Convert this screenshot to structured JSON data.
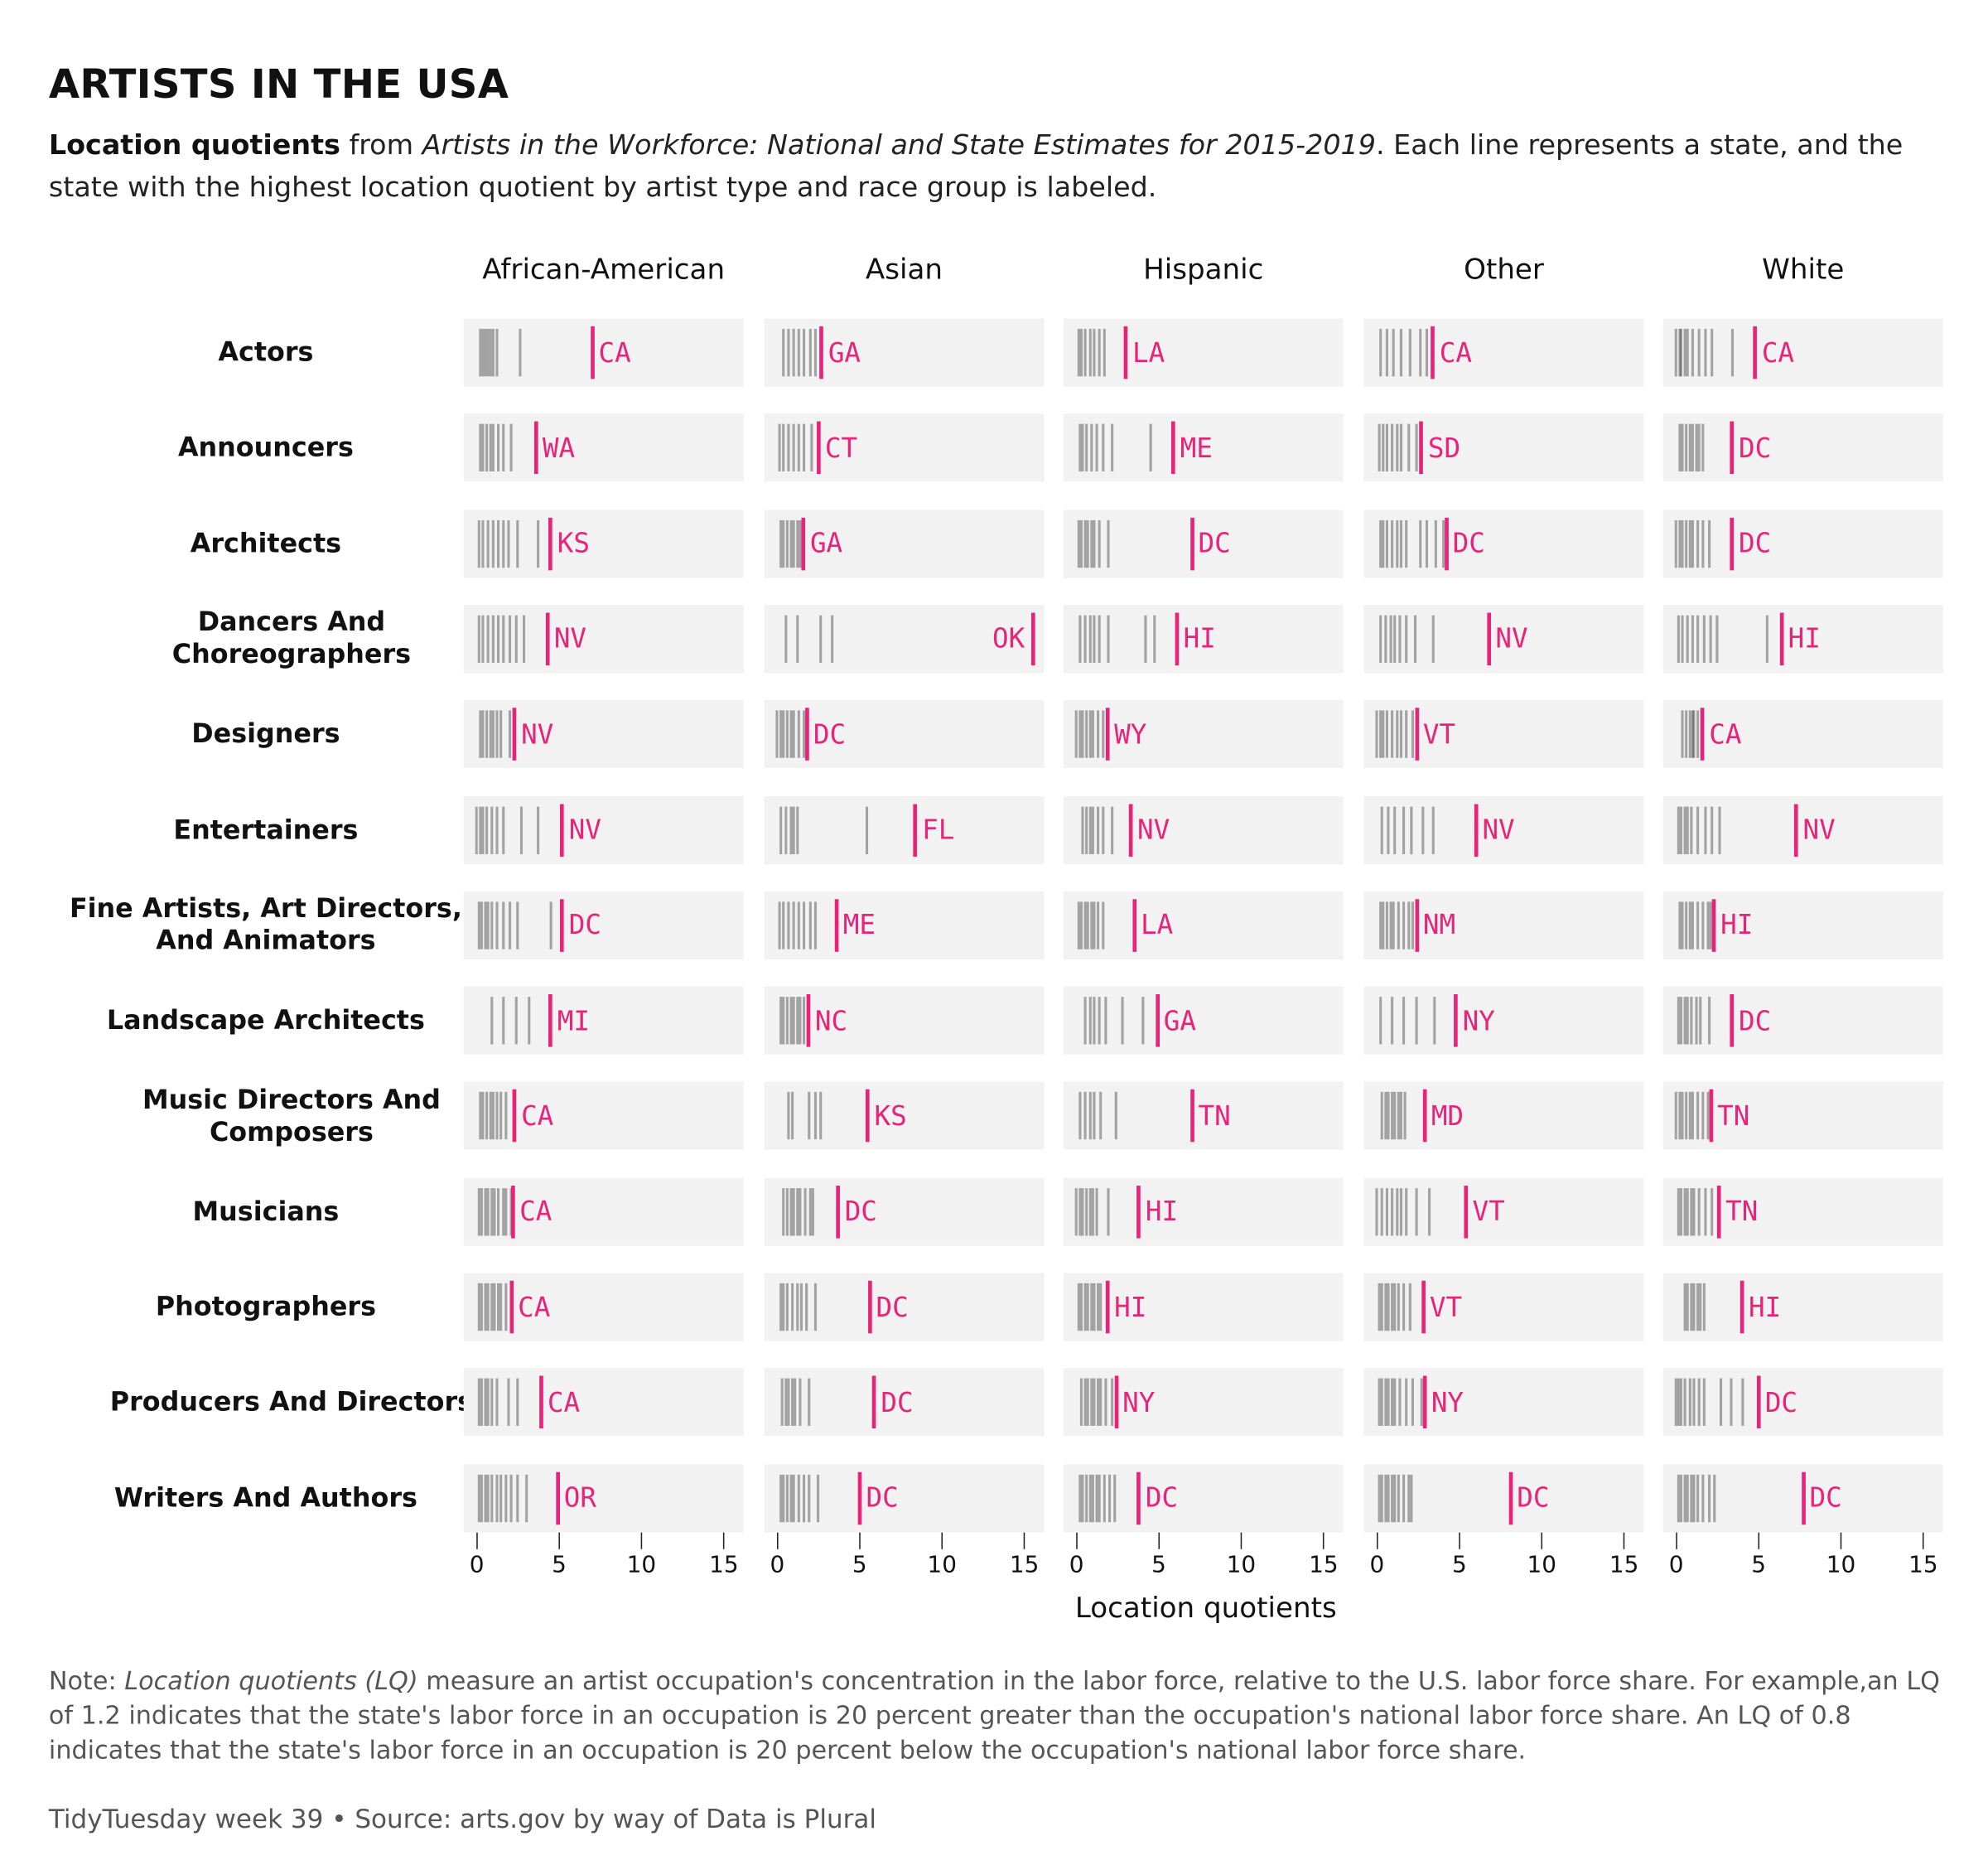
{
  "title": "ARTISTS IN THE USA",
  "subtitle": {
    "bold": "Location quotients",
    "from": " from ",
    "italic": "Artists in the Workforce: National and State Estimates for 2015-2019",
    "rest": ". Each line represents a state, and the state with the highest location quotient by artist type and race group is labeled."
  },
  "note": {
    "prefix": "Note: ",
    "italic": "Location quotients (LQ)",
    "rest": " measure an artist occupation's concentration in the labor force, relative to the U.S. labor force share. For example,an LQ of 1.2 indicates that the state's labor force in an occupation is 20 percent greater than the occupation's national labor force share. An LQ of 0.8 indicates that the state's labor force in an occupation is 20 percent below the occupation's national labor force share."
  },
  "caption": "TidyTuesday week 39 • Source: arts.gov by way of Data is Plural",
  "colors": {
    "highlight": "#e8237a",
    "state_line": "#000000",
    "panel_bg": "#f2f2f2"
  },
  "chart_data": {
    "type": "strip",
    "xlabel": "Location quotients",
    "xlim": [
      -0.8,
      16.2
    ],
    "xticks": [
      0,
      5,
      10,
      15
    ],
    "grid": false,
    "columns": [
      "African-American",
      "Asian",
      "Hispanic",
      "Other",
      "White"
    ],
    "rows": [
      "Actors",
      "Announcers",
      "Architects",
      "Dancers And Choreographers",
      "Designers",
      "Entertainers",
      "Fine Artists, Art Directors, And Animators",
      "Landscape Architects",
      "Music Directors And Composers",
      "Musicians",
      "Photographers",
      "Producers And Directors",
      "Writers And Authors"
    ],
    "cells": [
      [
        {
          "state": "CA",
          "max": 7.0,
          "others": [
            0.2,
            0.4,
            0.5,
            0.7,
            0.8,
            1.0,
            1.2,
            2.6
          ]
        },
        {
          "state": "GA",
          "max": 2.7,
          "others": [
            0.4,
            0.7,
            1.0,
            1.3,
            1.6,
            2.0,
            2.3
          ]
        },
        {
          "state": "LA",
          "max": 3.0,
          "others": [
            0.1,
            0.3,
            0.5,
            0.8,
            1.1,
            1.4,
            1.7
          ]
        },
        {
          "state": "CA",
          "max": 3.4,
          "others": [
            0.2,
            0.6,
            1.0,
            1.5,
            2.0,
            2.6,
            3.0
          ]
        },
        {
          "state": "CA",
          "max": 4.8,
          "others": [
            0.0,
            0.2,
            0.3,
            0.5,
            0.7,
            1.0,
            1.4,
            1.8,
            2.2,
            3.4
          ]
        }
      ],
      [
        {
          "state": "WA",
          "max": 3.6,
          "others": [
            0.2,
            0.4,
            0.6,
            0.8,
            1.0,
            1.3,
            1.6,
            2.1
          ]
        },
        {
          "state": "CT",
          "max": 2.5,
          "others": [
            0.1,
            0.4,
            0.7,
            1.0,
            1.3,
            1.6,
            2.1
          ]
        },
        {
          "state": "ME",
          "max": 5.9,
          "others": [
            0.2,
            0.4,
            0.6,
            0.9,
            1.2,
            1.6,
            2.2,
            4.5
          ]
        },
        {
          "state": "SD",
          "max": 2.7,
          "others": [
            0.1,
            0.4,
            0.6,
            0.9,
            1.2,
            1.5,
            1.9,
            2.4
          ]
        },
        {
          "state": "DC",
          "max": 3.4,
          "others": [
            0.2,
            0.4,
            0.6,
            0.8,
            1.0,
            1.2,
            1.4,
            1.6
          ]
        }
      ],
      [
        {
          "state": "KS",
          "max": 4.5,
          "others": [
            0.1,
            0.4,
            0.7,
            1.0,
            1.3,
            1.6,
            1.9,
            2.5,
            3.7
          ]
        },
        {
          "state": "GA",
          "max": 1.6,
          "others": [
            0.2,
            0.4,
            0.6,
            0.8,
            1.0,
            1.2,
            1.4
          ]
        },
        {
          "state": "DC",
          "max": 7.0,
          "others": [
            0.1,
            0.3,
            0.5,
            0.7,
            0.9,
            1.1,
            1.4,
            1.9
          ]
        },
        {
          "state": "DC",
          "max": 4.2,
          "others": [
            0.2,
            0.4,
            0.6,
            0.9,
            1.2,
            1.5,
            1.8,
            2.6,
            3.0,
            3.6,
            4.0
          ]
        },
        {
          "state": "DC",
          "max": 3.4,
          "others": [
            0.0,
            0.2,
            0.4,
            0.6,
            0.8,
            1.0,
            1.3,
            1.6,
            2.0
          ]
        }
      ],
      [
        {
          "state": "NV",
          "max": 4.3,
          "others": [
            0.1,
            0.4,
            0.7,
            1.0,
            1.3,
            1.6,
            2.0,
            2.4,
            2.9
          ]
        },
        {
          "state": "OK",
          "max": 15.5,
          "others": [
            0.5,
            1.2,
            2.6,
            3.3
          ]
        },
        {
          "state": "HI",
          "max": 6.1,
          "others": [
            0.2,
            0.5,
            0.8,
            1.1,
            1.4,
            1.9,
            4.2,
            4.7
          ]
        },
        {
          "state": "NV",
          "max": 6.8,
          "others": [
            0.2,
            0.5,
            0.8,
            1.1,
            1.4,
            1.8,
            2.3,
            3.4
          ]
        },
        {
          "state": "HI",
          "max": 6.4,
          "others": [
            0.1,
            0.4,
            0.7,
            1.0,
            1.3,
            1.7,
            2.1,
            2.5,
            5.5
          ]
        }
      ],
      [
        {
          "state": "NV",
          "max": 2.3,
          "others": [
            0.2,
            0.4,
            0.6,
            0.8,
            1.0,
            1.2,
            1.5,
            2.0
          ]
        },
        {
          "state": "DC",
          "max": 1.8,
          "others": [
            0.0,
            0.2,
            0.4,
            0.6,
            0.8,
            1.0,
            1.3,
            1.6
          ]
        },
        {
          "state": "WY",
          "max": 1.9,
          "others": [
            0.0,
            0.2,
            0.4,
            0.6,
            0.8,
            1.0,
            1.3,
            1.6
          ]
        },
        {
          "state": "VT",
          "max": 2.4,
          "others": [
            0.0,
            0.2,
            0.4,
            0.6,
            0.9,
            1.2,
            1.5,
            1.8,
            2.2
          ]
        },
        {
          "state": "CA",
          "max": 1.6,
          "others": [
            0.4,
            0.6,
            0.8,
            1.0,
            1.1,
            1.3
          ]
        }
      ],
      [
        {
          "state": "NV",
          "max": 5.2,
          "others": [
            0.0,
            0.2,
            0.4,
            0.6,
            0.9,
            1.2,
            1.6,
            2.7,
            3.7
          ]
        },
        {
          "state": "FL",
          "max": 8.4,
          "others": [
            0.2,
            0.5,
            0.8,
            1.0,
            1.2,
            5.4
          ]
        },
        {
          "state": "NV",
          "max": 3.3,
          "others": [
            0.4,
            0.6,
            0.8,
            1.0,
            1.3,
            1.6,
            2.2
          ]
        },
        {
          "state": "NV",
          "max": 6.0,
          "others": [
            0.3,
            0.7,
            1.1,
            1.6,
            2.1,
            2.8,
            3.4
          ]
        },
        {
          "state": "NV",
          "max": 7.3,
          "others": [
            0.1,
            0.3,
            0.5,
            0.7,
            0.9,
            1.3,
            1.8,
            2.2,
            2.6
          ]
        }
      ],
      [
        {
          "state": "DC",
          "max": 5.2,
          "others": [
            0.1,
            0.3,
            0.5,
            0.7,
            0.9,
            1.2,
            1.6,
            2.0,
            2.5,
            4.5
          ]
        },
        {
          "state": "ME",
          "max": 3.6,
          "others": [
            0.1,
            0.4,
            0.7,
            1.0,
            1.3,
            1.6,
            2.0,
            2.3
          ]
        },
        {
          "state": "LA",
          "max": 3.5,
          "others": [
            0.1,
            0.3,
            0.5,
            0.7,
            0.9,
            1.1,
            1.3,
            1.6
          ]
        },
        {
          "state": "NM",
          "max": 2.4,
          "others": [
            0.2,
            0.4,
            0.6,
            0.8,
            1.0,
            1.3,
            1.6,
            1.9,
            2.2
          ]
        },
        {
          "state": "HI",
          "max": 2.3,
          "others": [
            0.2,
            0.4,
            0.6,
            0.8,
            1.0,
            1.3,
            1.6,
            1.9,
            2.1
          ]
        }
      ],
      [
        {
          "state": "MI",
          "max": 4.5,
          "others": [
            0.9,
            1.6,
            2.4,
            3.2
          ]
        },
        {
          "state": "NC",
          "max": 1.9,
          "others": [
            0.2,
            0.4,
            0.6,
            0.8,
            1.0,
            1.2,
            1.4,
            1.6
          ]
        },
        {
          "state": "GA",
          "max": 4.9,
          "others": [
            0.5,
            0.8,
            1.1,
            1.4,
            1.8,
            2.8,
            4.0
          ]
        },
        {
          "state": "NY",
          "max": 4.8,
          "others": [
            0.2,
            0.9,
            1.6,
            2.4,
            3.5
          ]
        },
        {
          "state": "DC",
          "max": 3.4,
          "others": [
            0.1,
            0.3,
            0.5,
            0.7,
            0.9,
            1.2,
            1.5,
            2.0
          ]
        }
      ],
      [
        {
          "state": "CA",
          "max": 2.3,
          "others": [
            0.2,
            0.4,
            0.6,
            0.8,
            1.0,
            1.2,
            1.5,
            1.8
          ]
        },
        {
          "state": "KS",
          "max": 5.5,
          "others": [
            0.7,
            0.9,
            1.9,
            2.3,
            2.6
          ]
        },
        {
          "state": "TN",
          "max": 7.0,
          "others": [
            0.2,
            0.5,
            0.8,
            1.1,
            1.5,
            2.4
          ]
        },
        {
          "state": "MD",
          "max": 2.9,
          "others": [
            0.3,
            0.5,
            0.7,
            0.9,
            1.1,
            1.3,
            1.5,
            1.7
          ]
        },
        {
          "state": "TN",
          "max": 2.1,
          "others": [
            0.0,
            0.2,
            0.4,
            0.6,
            0.8,
            1.0,
            1.3,
            1.6,
            1.9
          ]
        }
      ],
      [
        {
          "state": "CA",
          "max": 2.2,
          "others": [
            0.1,
            0.3,
            0.5,
            0.7,
            0.9,
            1.1,
            1.3,
            1.6,
            1.8,
            2.1
          ]
        },
        {
          "state": "DC",
          "max": 3.7,
          "others": [
            0.4,
            0.6,
            0.8,
            1.0,
            1.2,
            1.4,
            1.7,
            2.0,
            2.2
          ]
        },
        {
          "state": "HI",
          "max": 3.8,
          "others": [
            0.0,
            0.2,
            0.4,
            0.6,
            0.8,
            1.0,
            1.2,
            1.9
          ]
        },
        {
          "state": "VT",
          "max": 5.4,
          "others": [
            0.0,
            0.3,
            0.6,
            0.9,
            1.2,
            1.5,
            1.8,
            2.4,
            3.2
          ]
        },
        {
          "state": "TN",
          "max": 2.6,
          "others": [
            0.1,
            0.3,
            0.5,
            0.7,
            0.9,
            1.1,
            1.4,
            1.8,
            2.2
          ]
        }
      ],
      [
        {
          "state": "CA",
          "max": 2.1,
          "others": [
            0.1,
            0.3,
            0.5,
            0.7,
            0.9,
            1.1,
            1.3,
            1.5,
            1.8
          ]
        },
        {
          "state": "DC",
          "max": 5.6,
          "others": [
            0.2,
            0.4,
            0.6,
            0.9,
            1.2,
            1.5,
            1.8,
            2.3
          ]
        },
        {
          "state": "HI",
          "max": 1.9,
          "others": [
            0.1,
            0.3,
            0.5,
            0.7,
            0.9,
            1.1,
            1.3,
            1.5
          ]
        },
        {
          "state": "VT",
          "max": 2.8,
          "others": [
            0.1,
            0.3,
            0.5,
            0.7,
            0.9,
            1.1,
            1.3,
            1.6,
            2.0
          ]
        },
        {
          "state": "HI",
          "max": 4.0,
          "others": [
            0.5,
            0.7,
            0.9,
            1.1,
            1.3,
            1.5,
            1.7
          ]
        }
      ],
      [
        {
          "state": "CA",
          "max": 3.9,
          "others": [
            0.1,
            0.3,
            0.5,
            0.7,
            0.9,
            1.2,
            1.9,
            2.5
          ]
        },
        {
          "state": "DC",
          "max": 5.9,
          "others": [
            0.3,
            0.5,
            0.7,
            0.9,
            1.1,
            1.4,
            1.9
          ]
        },
        {
          "state": "NY",
          "max": 2.4,
          "others": [
            0.3,
            0.5,
            0.7,
            0.9,
            1.1,
            1.3,
            1.5,
            1.8,
            2.2
          ]
        },
        {
          "state": "NY",
          "max": 2.9,
          "others": [
            0.1,
            0.3,
            0.5,
            0.7,
            0.9,
            1.1,
            1.4,
            1.8,
            2.2,
            2.7
          ]
        },
        {
          "state": "DC",
          "max": 5.0,
          "others": [
            0.0,
            0.1,
            0.3,
            0.5,
            0.8,
            1.1,
            1.4,
            1.7,
            2.7,
            3.3,
            4.0
          ]
        }
      ],
      [
        {
          "state": "OR",
          "max": 4.9,
          "others": [
            0.1,
            0.3,
            0.5,
            0.7,
            0.9,
            1.2,
            1.5,
            1.8,
            2.1,
            2.5,
            3.0
          ]
        },
        {
          "state": "DC",
          "max": 5.0,
          "others": [
            0.2,
            0.4,
            0.6,
            0.8,
            1.0,
            1.3,
            1.6,
            1.9,
            2.5
          ]
        },
        {
          "state": "DC",
          "max": 3.8,
          "others": [
            0.2,
            0.4,
            0.6,
            0.8,
            1.0,
            1.2,
            1.4,
            1.7,
            2.0,
            2.3
          ]
        },
        {
          "state": "DC",
          "max": 8.1,
          "others": [
            0.1,
            0.3,
            0.5,
            0.7,
            0.9,
            1.1,
            1.3,
            1.6,
            1.9,
            2.1
          ]
        },
        {
          "state": "DC",
          "max": 7.7,
          "others": [
            0.1,
            0.3,
            0.5,
            0.7,
            0.9,
            1.1,
            1.3,
            1.6,
            2.0,
            2.3
          ]
        }
      ]
    ]
  }
}
